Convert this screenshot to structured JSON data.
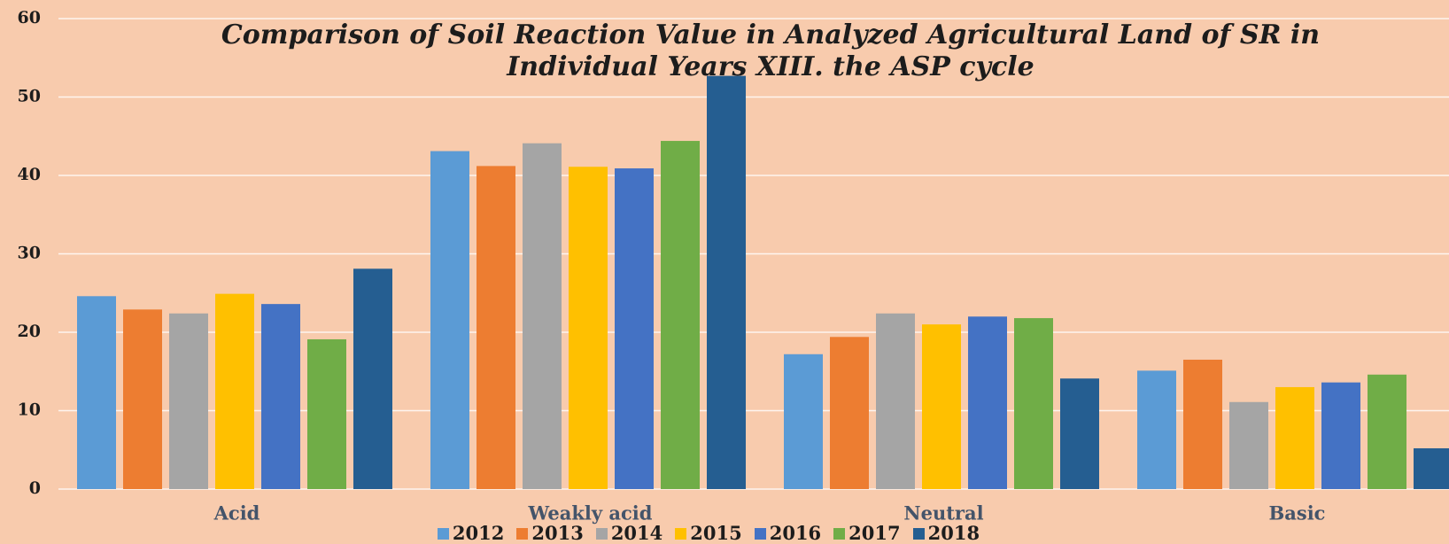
{
  "chart_data": {
    "type": "bar",
    "title": "Comparison of Soil Reaction Value in Analyzed Agricultural Land of SR in Individual Years XIII. the ASP cycle",
    "categories": [
      "Acid",
      "Weakly acid",
      "Neutral",
      "Basic"
    ],
    "series": [
      {
        "name": "2012",
        "color": "#5b9bd5",
        "values": [
          24.6,
          43.1,
          17.2,
          15.1
        ]
      },
      {
        "name": "2013",
        "color": "#ed7d31",
        "values": [
          22.9,
          41.2,
          19.4,
          16.5
        ]
      },
      {
        "name": "2014",
        "color": "#a5a5a5",
        "values": [
          22.4,
          44.1,
          22.4,
          11.1
        ]
      },
      {
        "name": "2015",
        "color": "#ffc000",
        "values": [
          24.9,
          41.1,
          21.0,
          13.0
        ]
      },
      {
        "name": "2016",
        "color": "#4472c4",
        "values": [
          23.6,
          40.9,
          22.0,
          13.6
        ]
      },
      {
        "name": "2017",
        "color": "#70ad47",
        "values": [
          19.1,
          44.4,
          21.8,
          14.6
        ]
      },
      {
        "name": "2018",
        "color": "#255e91",
        "values": [
          28.1,
          52.7,
          14.1,
          5.2
        ]
      }
    ],
    "ylim": [
      0,
      60
    ],
    "yticks": [
      0,
      10,
      20,
      30,
      40,
      50,
      60
    ],
    "grid": true,
    "legend": "bottom"
  }
}
